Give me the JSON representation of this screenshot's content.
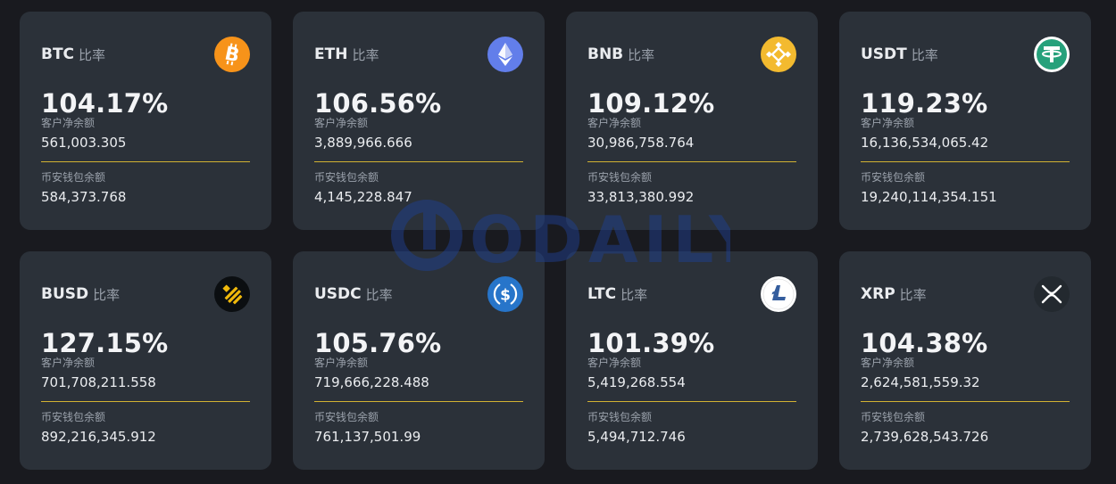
{
  "common": {
    "ratio_label": "比率",
    "customer_label": "客户净余额",
    "wallet_label": "币安钱包余额"
  },
  "watermark_text": "ODAILY",
  "cards": [
    {
      "symbol": "BTC",
      "ratio": "104.17%",
      "customer": "561,003.305",
      "wallet": "584,373.768",
      "icon": "btc-icon",
      "icon_color": "#f7931a"
    },
    {
      "symbol": "ETH",
      "ratio": "106.56%",
      "customer": "3,889,966.666",
      "wallet": "4,145,228.847",
      "icon": "eth-icon",
      "icon_color": "#627eea"
    },
    {
      "symbol": "BNB",
      "ratio": "109.12%",
      "customer": "30,986,758.764",
      "wallet": "33,813,380.992",
      "icon": "bnb-icon",
      "icon_color": "#f3ba2f"
    },
    {
      "symbol": "USDT",
      "ratio": "119.23%",
      "customer": "16,136,534,065.42",
      "wallet": "19,240,114,354.151",
      "icon": "usdt-icon",
      "icon_color": "#26a17b"
    },
    {
      "symbol": "BUSD",
      "ratio": "127.15%",
      "customer": "701,708,211.558",
      "wallet": "892,216,345.912",
      "icon": "busd-icon",
      "icon_color": "#f0b90b"
    },
    {
      "symbol": "USDC",
      "ratio": "105.76%",
      "customer": "719,666,228.488",
      "wallet": "761,137,501.99",
      "icon": "usdc-icon",
      "icon_color": "#2775ca"
    },
    {
      "symbol": "LTC",
      "ratio": "101.39%",
      "customer": "5,419,268.554",
      "wallet": "5,494,712.746",
      "icon": "ltc-icon",
      "icon_color": "#345d9d"
    },
    {
      "symbol": "XRP",
      "ratio": "104.38%",
      "customer": "2,624,581,559.32",
      "wallet": "2,739,628,543.726",
      "icon": "xrp-icon",
      "icon_color": "#23292f"
    }
  ]
}
